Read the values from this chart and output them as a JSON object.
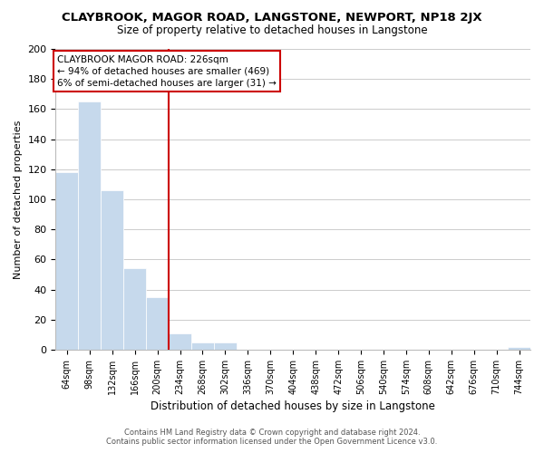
{
  "title": "CLAYBROOK, MAGOR ROAD, LANGSTONE, NEWPORT, NP18 2JX",
  "subtitle": "Size of property relative to detached houses in Langstone",
  "xlabel": "Distribution of detached houses by size in Langstone",
  "ylabel": "Number of detached properties",
  "bar_color": "#c6d9ec",
  "bin_labels": [
    "64sqm",
    "98sqm",
    "132sqm",
    "166sqm",
    "200sqm",
    "234sqm",
    "268sqm",
    "302sqm",
    "336sqm",
    "370sqm",
    "404sqm",
    "438sqm",
    "472sqm",
    "506sqm",
    "540sqm",
    "574sqm",
    "608sqm",
    "642sqm",
    "676sqm",
    "710sqm",
    "744sqm"
  ],
  "bar_heights": [
    118,
    165,
    106,
    54,
    35,
    11,
    5,
    5,
    0,
    0,
    0,
    0,
    0,
    0,
    0,
    0,
    0,
    0,
    0,
    0,
    2
  ],
  "ylim": [
    0,
    200
  ],
  "yticks": [
    0,
    20,
    40,
    60,
    80,
    100,
    120,
    140,
    160,
    180,
    200
  ],
  "vline_x": 5,
  "vline_color": "#cc0000",
  "annotation_line1": "CLAYBROOK MAGOR ROAD: 226sqm",
  "annotation_line2": "← 94% of detached houses are smaller (469)",
  "annotation_line3": "6% of semi-detached houses are larger (31) →",
  "footer_line1": "Contains HM Land Registry data © Crown copyright and database right 2024.",
  "footer_line2": "Contains public sector information licensed under the Open Government Licence v3.0.",
  "background_color": "#ffffff",
  "grid_color": "#cccccc"
}
